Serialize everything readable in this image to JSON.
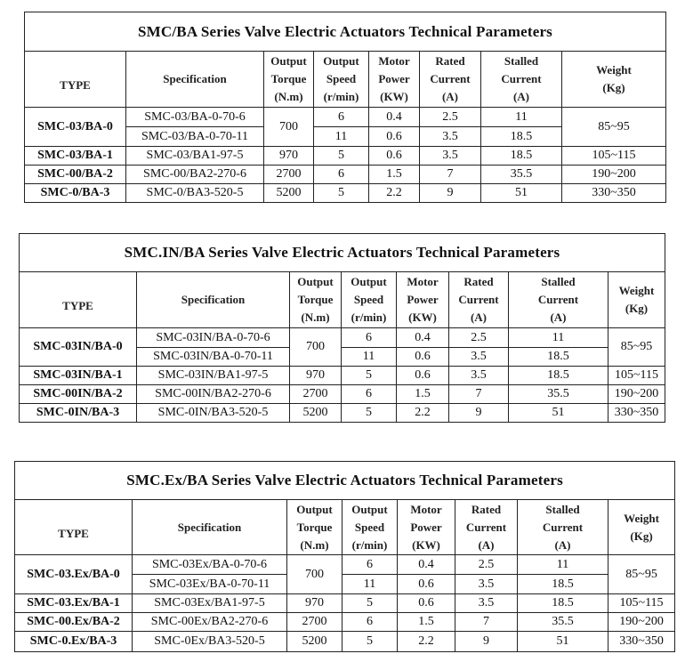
{
  "headers": [
    "TYPE",
    "Specification",
    "Output Torque (N.m)",
    "Output Speed (r/min)",
    "Motor Power (KW)",
    "Rated Current (A)",
    "Stalled Current (A)",
    "Weight (Kg)"
  ],
  "header_lines": [
    [
      "TYPE"
    ],
    [
      "Specification"
    ],
    [
      "Output",
      "Torque",
      "(N.m)"
    ],
    [
      "Output",
      "Speed",
      "(r/min)"
    ],
    [
      "Motor",
      "Power",
      "(KW)"
    ],
    [
      "Rated",
      "Current",
      "(A)"
    ],
    [
      "Stalled",
      "Current",
      "(A)"
    ],
    [
      "Weight",
      "(Kg)"
    ]
  ],
  "tables": [
    {
      "title": "SMC/BA Series Valve Electric Actuators Technical Parameters",
      "rows": [
        {
          "type": "SMC-03/BA-0",
          "weight": "85~95",
          "torque": "700",
          "subs": [
            {
              "spec": "SMC-03/BA-0-70-6",
              "speed": "6",
              "power": "0.4",
              "rated": "2.5",
              "stalled": "11"
            },
            {
              "spec": "SMC-03/BA-0-70-11",
              "speed": "11",
              "power": "0.6",
              "rated": "3.5",
              "stalled": "18.5"
            }
          ]
        },
        {
          "type": "SMC-03/BA-1",
          "weight": "105~115",
          "torque": "970",
          "subs": [
            {
              "spec": "SMC-03/BA1-97-5",
              "speed": "5",
              "power": "0.6",
              "rated": "3.5",
              "stalled": "18.5"
            }
          ]
        },
        {
          "type": "SMC-00/BA-2",
          "weight": "190~200",
          "torque": "2700",
          "subs": [
            {
              "spec": "SMC-00/BA2-270-6",
              "speed": "6",
              "power": "1.5",
              "rated": "7",
              "stalled": "35.5"
            }
          ]
        },
        {
          "type": "SMC-0/BA-3",
          "weight": "330~350",
          "torque": "5200",
          "subs": [
            {
              "spec": "SMC-0/BA3-520-5",
              "speed": "5",
              "power": "2.2",
              "rated": "9",
              "stalled": "51"
            }
          ]
        }
      ]
    },
    {
      "title": "SMC.IN/BA Series Valve Electric Actuators Technical Parameters",
      "rows": [
        {
          "type": "SMC-03IN/BA-0",
          "weight": "85~95",
          "torque": "700",
          "subs": [
            {
              "spec": "SMC-03IN/BA-0-70-6",
              "speed": "6",
              "power": "0.4",
              "rated": "2.5",
              "stalled": "11"
            },
            {
              "spec": "SMC-03IN/BA-0-70-11",
              "speed": "11",
              "power": "0.6",
              "rated": "3.5",
              "stalled": "18.5"
            }
          ]
        },
        {
          "type": "SMC-03IN/BA-1",
          "weight": "105~115",
          "torque": "970",
          "subs": [
            {
              "spec": "SMC-03IN/BA1-97-5",
              "speed": "5",
              "power": "0.6",
              "rated": "3.5",
              "stalled": "18.5"
            }
          ]
        },
        {
          "type": "SMC-00IN/BA-2",
          "weight": "190~200",
          "torque": "2700",
          "subs": [
            {
              "spec": "SMC-00IN/BA2-270-6",
              "speed": "6",
              "power": "1.5",
              "rated": "7",
              "stalled": "35.5"
            }
          ]
        },
        {
          "type": "SMC-0IN/BA-3",
          "weight": "330~350",
          "torque": "5200",
          "subs": [
            {
              "spec": "SMC-0IN/BA3-520-5",
              "speed": "5",
              "power": "2.2",
              "rated": "9",
              "stalled": "51"
            }
          ]
        }
      ]
    },
    {
      "title": "SMC.Ex/BA Series Valve Electric Actuators Technical Parameters",
      "rows": [
        {
          "type": "SMC-03.Ex/BA-0",
          "weight": "85~95",
          "torque": "700",
          "subs": [
            {
              "spec": "SMC-03Ex/BA-0-70-6",
              "speed": "6",
              "power": "0.4",
              "rated": "2.5",
              "stalled": "11"
            },
            {
              "spec": "SMC-03Ex/BA-0-70-11",
              "speed": "11",
              "power": "0.6",
              "rated": "3.5",
              "stalled": "18.5"
            }
          ]
        },
        {
          "type": "SMC-03.Ex/BA-1",
          "weight": "105~115",
          "torque": "970",
          "subs": [
            {
              "spec": "SMC-03Ex/BA1-97-5",
              "speed": "5",
              "power": "0.6",
              "rated": "3.5",
              "stalled": "18.5"
            }
          ]
        },
        {
          "type": "SMC-00.Ex/BA-2",
          "weight": "190~200",
          "torque": "2700",
          "subs": [
            {
              "spec": "SMC-00Ex/BA2-270-6",
              "speed": "6",
              "power": "1.5",
              "rated": "7",
              "stalled": "35.5"
            }
          ]
        },
        {
          "type": "SMC-0.Ex/BA-3",
          "weight": "330~350",
          "torque": "5200",
          "subs": [
            {
              "spec": "SMC-0Ex/BA3-520-5",
              "speed": "5",
              "power": "2.2",
              "rated": "9",
              "stalled": "51"
            }
          ]
        }
      ]
    }
  ]
}
